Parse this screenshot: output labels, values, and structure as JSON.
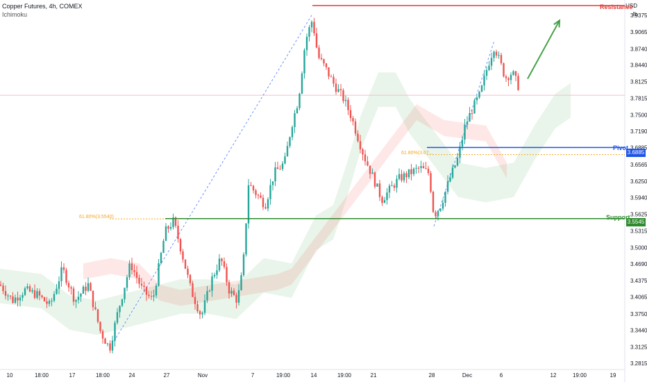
{
  "header": {
    "title": "Copper Futures, 4h, COMEX",
    "indicator": "Ichimoku"
  },
  "axis": {
    "currency": "USD",
    "unit": "lb"
  },
  "levels": {
    "resistance": {
      "label": "Resistance",
      "color": "#e53935"
    },
    "pivot": {
      "label": "Pivot",
      "value_text": "3.6885",
      "color": "#1e53e5"
    },
    "support": {
      "label": "Support",
      "value_text": "3.5545",
      "color": "#2e8b2e"
    }
  },
  "fib_labels": {
    "left": "61.80%(3.5540)",
    "right": "61.80%(3.67..."
  },
  "chart_data": {
    "type": "candlestick",
    "title": "Copper Futures, 4h, COMEX",
    "ylabel": "USD / lb",
    "ylim": [
      3.27,
      3.96
    ],
    "yticks": [
      3.9375,
      3.9065,
      3.874,
      3.844,
      3.8125,
      3.7815,
      3.75,
      3.719,
      3.6885,
      3.6565,
      3.625,
      3.594,
      3.5625,
      3.5315,
      3.5,
      3.469,
      3.4375,
      3.4065,
      3.375,
      3.344,
      3.3125,
      3.2815
    ],
    "xticks": [
      "10",
      "18:00",
      "17",
      "18:00",
      "24",
      "27",
      "Nov",
      "7",
      "19:00",
      "14",
      "19:00",
      "21",
      "28",
      "Dec",
      "6",
      "12",
      "19:00",
      "19"
    ],
    "levels": {
      "resistance": 3.956,
      "pivot": 3.6885,
      "support": 3.5545,
      "fib_left": 3.554,
      "fib_right": 3.675,
      "current_price_line": 3.787
    },
    "price_path": [
      [
        0,
        3.43
      ],
      [
        18,
        3.4
      ],
      [
        36,
        3.42
      ],
      [
        55,
        3.41
      ],
      [
        72,
        3.39
      ],
      [
        90,
        3.46
      ],
      [
        108,
        3.4
      ],
      [
        127,
        3.43
      ],
      [
        145,
        3.34
      ],
      [
        158,
        3.31
      ],
      [
        170,
        3.38
      ],
      [
        188,
        3.47
      ],
      [
        205,
        3.42
      ],
      [
        220,
        3.4
      ],
      [
        238,
        3.53
      ],
      [
        250,
        3.55
      ],
      [
        262,
        3.49
      ],
      [
        275,
        3.42
      ],
      [
        290,
        3.37
      ],
      [
        305,
        3.44
      ],
      [
        318,
        3.48
      ],
      [
        330,
        3.42
      ],
      [
        342,
        3.4
      ],
      [
        350,
        3.46
      ],
      [
        358,
        3.62
      ],
      [
        370,
        3.6
      ],
      [
        382,
        3.58
      ],
      [
        395,
        3.64
      ],
      [
        410,
        3.66
      ],
      [
        420,
        3.73
      ],
      [
        430,
        3.78
      ],
      [
        440,
        3.89
      ],
      [
        450,
        3.93
      ],
      [
        458,
        3.86
      ],
      [
        468,
        3.84
      ],
      [
        480,
        3.81
      ],
      [
        495,
        3.78
      ],
      [
        505,
        3.75
      ],
      [
        515,
        3.71
      ],
      [
        525,
        3.67
      ],
      [
        538,
        3.63
      ],
      [
        550,
        3.59
      ],
      [
        562,
        3.61
      ],
      [
        575,
        3.63
      ],
      [
        590,
        3.64
      ],
      [
        605,
        3.65
      ],
      [
        618,
        3.64
      ],
      [
        625,
        3.56
      ],
      [
        635,
        3.58
      ],
      [
        648,
        3.63
      ],
      [
        660,
        3.67
      ],
      [
        670,
        3.73
      ],
      [
        680,
        3.76
      ],
      [
        692,
        3.79
      ],
      [
        702,
        3.84
      ],
      [
        712,
        3.88
      ],
      [
        720,
        3.85
      ],
      [
        728,
        3.82
      ],
      [
        738,
        3.83
      ],
      [
        748,
        3.8
      ]
    ],
    "projection_arrow": {
      "from": [
        760,
        3.818
      ],
      "to": [
        806,
        3.928
      ]
    },
    "cloud": {
      "green": [
        [
          0,
          3.46
        ],
        [
          60,
          3.45
        ],
        [
          100,
          3.41
        ],
        [
          140,
          3.4
        ],
        [
          200,
          3.42
        ],
        [
          260,
          3.44
        ],
        [
          300,
          3.44
        ],
        [
          340,
          3.43
        ],
        [
          380,
          3.48
        ],
        [
          420,
          3.47
        ],
        [
          455,
          3.56
        ],
        [
          480,
          3.58
        ],
        [
          500,
          3.66
        ],
        [
          520,
          3.75
        ],
        [
          545,
          3.83
        ],
        [
          570,
          3.83
        ],
        [
          590,
          3.78
        ],
        [
          660,
          3.66
        ],
        [
          700,
          3.65
        ],
        [
          740,
          3.66
        ],
        [
          770,
          3.73
        ],
        [
          800,
          3.79
        ],
        [
          822,
          3.81
        ]
      ],
      "red": [
        [
          120,
          3.47
        ],
        [
          160,
          3.48
        ],
        [
          200,
          3.47
        ],
        [
          230,
          3.43
        ],
        [
          260,
          3.42
        ],
        [
          400,
          3.45
        ],
        [
          420,
          3.46
        ],
        [
          600,
          3.77
        ],
        [
          640,
          3.74
        ],
        [
          700,
          3.73
        ],
        [
          730,
          3.66
        ]
      ]
    }
  }
}
